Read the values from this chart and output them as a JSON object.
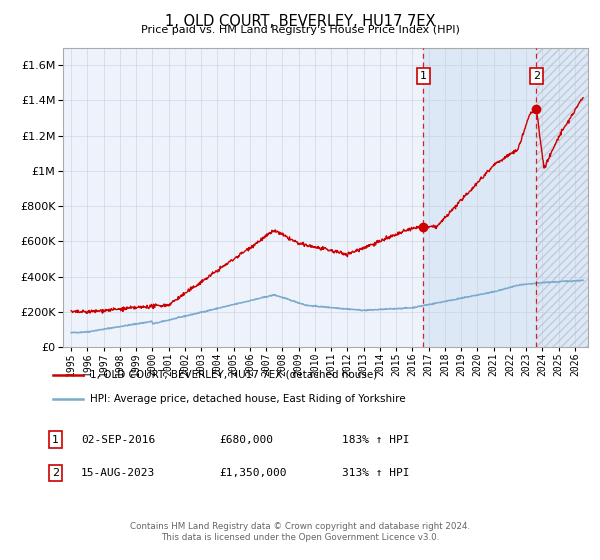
{
  "title": "1, OLD COURT, BEVERLEY, HU17 7EX",
  "subtitle": "Price paid vs. HM Land Registry's House Price Index (HPI)",
  "xlim": [
    1994.5,
    2026.8
  ],
  "ylim": [
    0,
    1700000
  ],
  "yticks": [
    0,
    200000,
    400000,
    600000,
    800000,
    1000000,
    1200000,
    1400000,
    1600000
  ],
  "ytick_labels": [
    "£0",
    "£200K",
    "£400K",
    "£600K",
    "£800K",
    "£1M",
    "£1.2M",
    "£1.4M",
    "£1.6M"
  ],
  "xtick_years": [
    1995,
    1996,
    1997,
    1998,
    1999,
    2000,
    2001,
    2002,
    2003,
    2004,
    2005,
    2006,
    2007,
    2008,
    2009,
    2010,
    2011,
    2012,
    2013,
    2014,
    2015,
    2016,
    2017,
    2018,
    2019,
    2020,
    2021,
    2022,
    2023,
    2024,
    2025,
    2026
  ],
  "red_line_color": "#cc0000",
  "blue_line_color": "#7aaacc",
  "background_plot": "#eef2fa",
  "background_shaded": "#dce8f5",
  "grid_color": "#c8d0dc",
  "transaction1_x": 2016.67,
  "transaction1_y": 680000,
  "transaction1_label": "1",
  "transaction1_date": "02-SEP-2016",
  "transaction1_price": "£680,000",
  "transaction1_hpi": "183% ↑ HPI",
  "transaction2_x": 2023.62,
  "transaction2_y": 1350000,
  "transaction2_label": "2",
  "transaction2_date": "15-AUG-2023",
  "transaction2_price": "£1,350,000",
  "transaction2_hpi": "313% ↑ HPI",
  "legend_line1": "1, OLD COURT, BEVERLEY, HU17 7EX (detached house)",
  "legend_line2": "HPI: Average price, detached house, East Riding of Yorkshire",
  "footer1": "Contains HM Land Registry data © Crown copyright and database right 2024.",
  "footer2": "This data is licensed under the Open Government Licence v3.0.",
  "shaded_start": 2016.67,
  "shaded_end": 2026.8,
  "hatch_start": 2023.62
}
